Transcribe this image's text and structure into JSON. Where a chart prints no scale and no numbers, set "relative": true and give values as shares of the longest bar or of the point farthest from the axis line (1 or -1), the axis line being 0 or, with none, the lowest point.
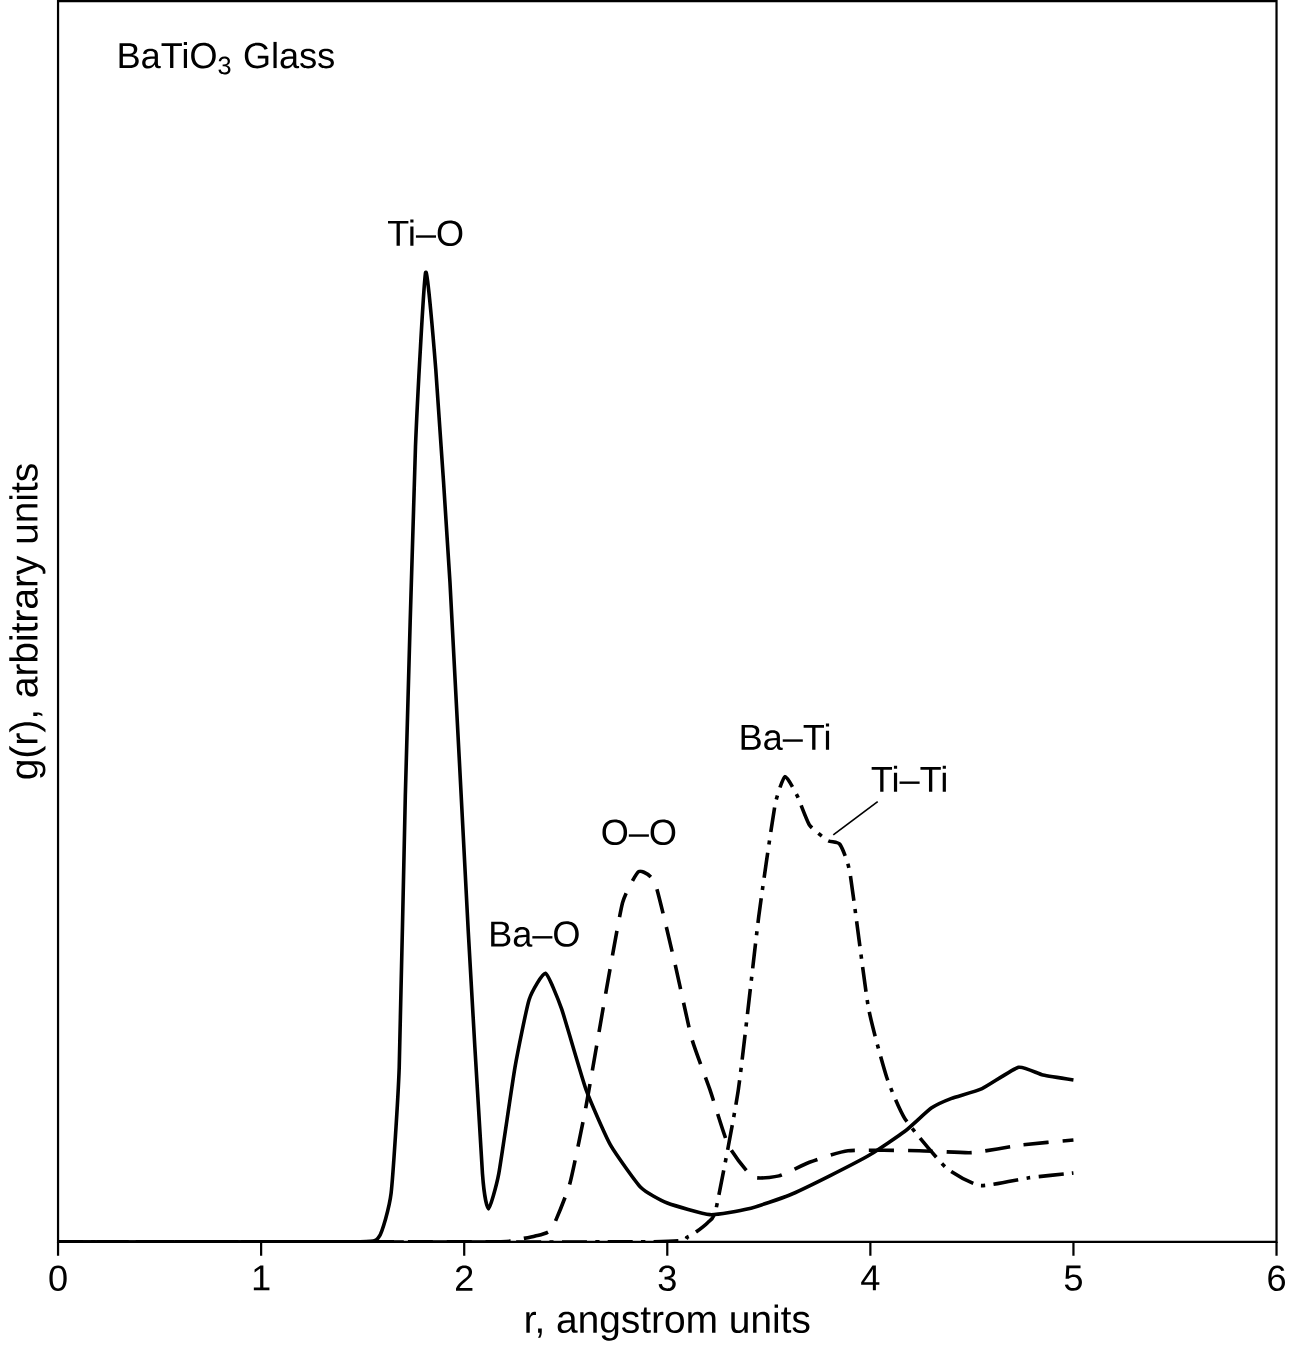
{
  "chart_data": {
    "type": "line",
    "relative": true,
    "xlabel": "r, angstrom units",
    "ylabel": "g(r), arbitrary units",
    "xlim": [
      0,
      6
    ],
    "xticks": [
      0,
      1,
      2,
      3,
      4,
      5,
      6
    ],
    "annotations": [
      "BaTiO$_{3}$ Glass",
      {
        "text": "Ti–O",
        "x": 1.81,
        "y": 1.0
      },
      {
        "text": "Ba–O",
        "x": 2.4,
        "y": 0.277
      },
      {
        "text": "O–O",
        "x": 2.86,
        "y": 0.382
      },
      {
        "text": "Ba–Ti",
        "x": 3.58,
        "y": 0.48
      },
      {
        "text": "Ti–Ti",
        "x": 3.79,
        "y": 0.414
      }
    ],
    "series": [
      {
        "color": "#000000",
        "line_style": "solid",
        "x": [
          0,
          1.45,
          1.58,
          1.64,
          1.68,
          1.71,
          1.76,
          1.81,
          1.86,
          1.93,
          2.02,
          2.09,
          2.12,
          2.17,
          2.25,
          2.32,
          2.4,
          2.48,
          2.6,
          2.72,
          2.87,
          3.0,
          3.21,
          3.4,
          3.6,
          3.8,
          4.0,
          4.17,
          4.3,
          4.4,
          4.55,
          4.73,
          4.85,
          5.0
        ],
        "values": [
          0,
          0,
          0.005,
          0.05,
          0.18,
          0.46,
          0.82,
          1.0,
          0.9,
          0.68,
          0.32,
          0.07,
          0.034,
          0.07,
          0.18,
          0.25,
          0.277,
          0.24,
          0.157,
          0.1,
          0.056,
          0.04,
          0.028,
          0.034,
          0.048,
          0.068,
          0.09,
          0.114,
          0.138,
          0.148,
          0.158,
          0.18,
          0.172,
          0.167
        ]
      },
      {
        "color": "#000000",
        "line_style": "dashed",
        "x": [
          0,
          2.1,
          2.25,
          2.35,
          2.43,
          2.52,
          2.6,
          2.7,
          2.78,
          2.86,
          2.94,
          3.04,
          3.12,
          3.21,
          3.3,
          3.42,
          3.55,
          3.7,
          3.89,
          4.24,
          4.5,
          4.75,
          5.0
        ],
        "values": [
          0,
          0,
          0.002,
          0.006,
          0.013,
          0.06,
          0.14,
          0.26,
          0.35,
          0.382,
          0.37,
          0.285,
          0.21,
          0.157,
          0.1,
          0.067,
          0.068,
          0.082,
          0.094,
          0.094,
          0.092,
          0.1,
          0.105
        ]
      },
      {
        "color": "#000000",
        "line_style": "dashdot",
        "x": [
          0,
          2.9,
          3.1,
          3.2,
          3.24,
          3.35,
          3.45,
          3.53,
          3.58,
          3.64,
          3.7,
          3.79,
          3.85,
          3.9,
          3.99,
          4.08,
          4.17,
          4.37,
          4.54,
          4.78,
          5.0
        ],
        "values": [
          0,
          0,
          0.005,
          0.02,
          0.034,
          0.157,
          0.335,
          0.45,
          0.48,
          0.46,
          0.43,
          0.414,
          0.41,
          0.38,
          0.242,
          0.17,
          0.127,
          0.077,
          0.058,
          0.066,
          0.071
        ]
      }
    ]
  }
}
